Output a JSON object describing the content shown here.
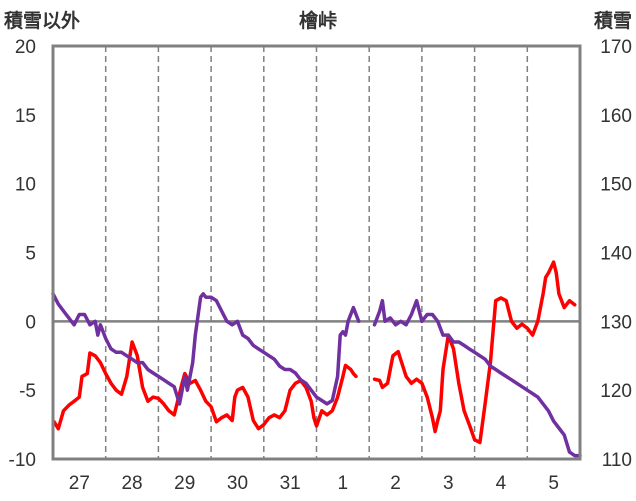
{
  "chart_data": {
    "type": "line",
    "title": "檜峠",
    "left_axis_label": "積雪以外",
    "right_axis_label": "積雪",
    "x_tick_labels": [
      "27",
      "28",
      "29",
      "30",
      "31",
      "1",
      "2",
      "3",
      "4",
      "5"
    ],
    "y_left": {
      "min": -10,
      "max": 20,
      "ticks": [
        20,
        15,
        10,
        5,
        0,
        -5,
        -10
      ]
    },
    "y_right": {
      "min": 110,
      "max": 170,
      "ticks": [
        170,
        160,
        150,
        140,
        130,
        120,
        110
      ]
    },
    "x_range": [
      26.5,
      36.5
    ],
    "zero_line": true,
    "grid": "dashed vertical at day boundaries",
    "series": [
      {
        "color": "#ff0000",
        "axis": "left",
        "segments": [
          [
            [
              26.52,
              -7.3
            ],
            [
              26.6,
              -7.8
            ],
            [
              26.7,
              -6.5
            ],
            [
              26.8,
              -6.1
            ],
            [
              26.9,
              -5.8
            ],
            [
              27.0,
              -5.5
            ],
            [
              27.05,
              -4.0
            ],
            [
              27.15,
              -3.8
            ],
            [
              27.2,
              -2.3
            ],
            [
              27.3,
              -2.5
            ],
            [
              27.4,
              -3.0
            ],
            [
              27.5,
              -3.8
            ],
            [
              27.6,
              -4.5
            ],
            [
              27.7,
              -5.0
            ],
            [
              27.8,
              -5.3
            ],
            [
              27.9,
              -4.0
            ],
            [
              28.0,
              -1.5
            ],
            [
              28.1,
              -2.5
            ],
            [
              28.2,
              -4.8
            ],
            [
              28.3,
              -5.8
            ],
            [
              28.4,
              -5.5
            ],
            [
              28.5,
              -5.6
            ],
            [
              28.6,
              -6.0
            ],
            [
              28.7,
              -6.5
            ],
            [
              28.8,
              -6.8
            ],
            [
              28.95,
              -4.5
            ],
            [
              29.0,
              -3.8
            ],
            [
              29.1,
              -4.5
            ],
            [
              29.2,
              -4.3
            ],
            [
              29.3,
              -5.0
            ],
            [
              29.4,
              -5.8
            ],
            [
              29.5,
              -6.2
            ],
            [
              29.6,
              -7.3
            ],
            [
              29.7,
              -7.0
            ],
            [
              29.8,
              -6.8
            ],
            [
              29.9,
              -7.2
            ],
            [
              29.95,
              -5.5
            ],
            [
              30.0,
              -5.0
            ],
            [
              30.1,
              -4.8
            ],
            [
              30.2,
              -5.5
            ],
            [
              30.3,
              -7.2
            ],
            [
              30.4,
              -7.8
            ],
            [
              30.5,
              -7.5
            ],
            [
              30.6,
              -7.0
            ],
            [
              30.7,
              -6.8
            ],
            [
              30.8,
              -7.0
            ],
            [
              30.9,
              -6.5
            ],
            [
              31.0,
              -5.0
            ],
            [
              31.1,
              -4.5
            ],
            [
              31.2,
              -4.3
            ],
            [
              31.3,
              -4.8
            ],
            [
              31.4,
              -5.8
            ],
            [
              31.45,
              -7.0
            ],
            [
              31.5,
              -7.6
            ],
            [
              31.6,
              -6.5
            ],
            [
              31.7,
              -6.8
            ],
            [
              31.8,
              -6.5
            ],
            [
              31.9,
              -5.5
            ],
            [
              32.0,
              -4.0
            ],
            [
              32.05,
              -3.2
            ],
            [
              32.15,
              -3.5
            ],
            [
              32.2,
              -3.8
            ],
            [
              32.25,
              -4.0
            ]
          ],
          [
            [
              32.6,
              -4.2
            ],
            [
              32.7,
              -4.3
            ],
            [
              32.75,
              -4.8
            ],
            [
              32.85,
              -4.5
            ],
            [
              32.95,
              -2.5
            ],
            [
              33.05,
              -2.2
            ],
            [
              33.1,
              -2.8
            ],
            [
              33.2,
              -4.0
            ],
            [
              33.3,
              -4.5
            ],
            [
              33.4,
              -4.2
            ],
            [
              33.5,
              -4.5
            ],
            [
              33.6,
              -5.5
            ],
            [
              33.7,
              -7.0
            ],
            [
              33.75,
              -8.0
            ],
            [
              33.8,
              -7.2
            ],
            [
              33.85,
              -6.5
            ],
            [
              33.9,
              -3.5
            ],
            [
              34.0,
              -1.0
            ],
            [
              34.1,
              -2.0
            ],
            [
              34.2,
              -4.5
            ],
            [
              34.3,
              -6.5
            ],
            [
              34.4,
              -7.5
            ],
            [
              34.5,
              -8.6
            ],
            [
              34.6,
              -8.8
            ],
            [
              34.7,
              -6.0
            ],
            [
              34.8,
              -3.0
            ],
            [
              34.9,
              1.5
            ],
            [
              35.0,
              1.7
            ],
            [
              35.1,
              1.5
            ],
            [
              35.2,
              0.0
            ],
            [
              35.3,
              -0.5
            ],
            [
              35.4,
              -0.2
            ],
            [
              35.5,
              -0.5
            ],
            [
              35.6,
              -1.0
            ],
            [
              35.7,
              0.0
            ],
            [
              35.8,
              2.0
            ],
            [
              35.85,
              3.2
            ],
            [
              35.9,
              3.5
            ],
            [
              36.0,
              4.3
            ],
            [
              36.05,
              3.5
            ],
            [
              36.1,
              2.0
            ],
            [
              36.2,
              1.0
            ],
            [
              36.3,
              1.5
            ],
            [
              36.4,
              1.2
            ]
          ]
        ]
      },
      {
        "color": "#7030a0",
        "axis": "right",
        "segments": [
          [
            [
              26.5,
              134.0
            ],
            [
              26.6,
              132.5
            ],
            [
              26.7,
              131.5
            ],
            [
              26.8,
              130.5
            ],
            [
              26.9,
              129.5
            ],
            [
              27.0,
              131.0
            ],
            [
              27.1,
              131.0
            ],
            [
              27.2,
              129.5
            ],
            [
              27.3,
              130.0
            ],
            [
              27.35,
              128.0
            ],
            [
              27.4,
              129.5
            ],
            [
              27.5,
              127.5
            ],
            [
              27.6,
              126.0
            ],
            [
              27.7,
              125.5
            ],
            [
              27.8,
              125.5
            ],
            [
              27.9,
              125.0
            ],
            [
              28.0,
              124.5
            ],
            [
              28.1,
              124.0
            ],
            [
              28.2,
              124.0
            ],
            [
              28.3,
              123.0
            ],
            [
              28.4,
              122.5
            ],
            [
              28.5,
              122.0
            ],
            [
              28.6,
              121.5
            ],
            [
              28.7,
              121.0
            ],
            [
              28.8,
              120.5
            ],
            [
              28.9,
              118.0
            ],
            [
              29.0,
              122.0
            ],
            [
              29.05,
              120.0
            ],
            [
              29.15,
              124.0
            ],
            [
              29.2,
              128.0
            ],
            [
              29.3,
              133.5
            ],
            [
              29.35,
              134.0
            ],
            [
              29.4,
              133.5
            ],
            [
              29.5,
              133.5
            ],
            [
              29.6,
              133.0
            ],
            [
              29.7,
              131.5
            ],
            [
              29.8,
              130.0
            ],
            [
              29.9,
              129.5
            ],
            [
              30.0,
              130.0
            ],
            [
              30.1,
              128.0
            ],
            [
              30.2,
              127.5
            ],
            [
              30.3,
              126.5
            ],
            [
              30.4,
              126.0
            ],
            [
              30.5,
              125.5
            ],
            [
              30.6,
              125.0
            ],
            [
              30.7,
              124.5
            ],
            [
              30.8,
              123.5
            ],
            [
              30.9,
              123.0
            ],
            [
              31.0,
              123.0
            ],
            [
              31.1,
              122.5
            ],
            [
              31.2,
              121.5
            ],
            [
              31.3,
              121.0
            ],
            [
              31.4,
              120.0
            ],
            [
              31.5,
              119.0
            ],
            [
              31.6,
              118.5
            ],
            [
              31.7,
              118.0
            ],
            [
              31.8,
              118.5
            ],
            [
              31.9,
              122.0
            ],
            [
              31.95,
              128.0
            ],
            [
              32.0,
              128.5
            ],
            [
              32.05,
              128.0
            ],
            [
              32.1,
              130.0
            ],
            [
              32.2,
              132.0
            ],
            [
              32.3,
              130.0
            ]
          ],
          [
            [
              32.6,
              129.5
            ],
            [
              32.7,
              131.5
            ],
            [
              32.75,
              133.0
            ],
            [
              32.8,
              130.0
            ],
            [
              32.9,
              130.5
            ],
            [
              33.0,
              129.5
            ],
            [
              33.1,
              130.0
            ],
            [
              33.2,
              129.5
            ],
            [
              33.3,
              131.0
            ],
            [
              33.4,
              133.0
            ],
            [
              33.5,
              130.0
            ],
            [
              33.6,
              131.0
            ],
            [
              33.7,
              131.0
            ],
            [
              33.8,
              130.0
            ],
            [
              33.9,
              128.0
            ],
            [
              34.0,
              128.0
            ],
            [
              34.1,
              127.0
            ],
            [
              34.2,
              127.0
            ],
            [
              34.3,
              126.5
            ],
            [
              34.4,
              126.0
            ],
            [
              34.5,
              125.5
            ],
            [
              34.6,
              125.0
            ],
            [
              34.7,
              124.5
            ],
            [
              34.8,
              123.5
            ],
            [
              34.9,
              123.0
            ],
            [
              35.0,
              122.5
            ],
            [
              35.1,
              122.0
            ],
            [
              35.2,
              121.5
            ],
            [
              35.3,
              121.0
            ],
            [
              35.4,
              120.5
            ],
            [
              35.5,
              120.0
            ],
            [
              35.6,
              119.5
            ],
            [
              35.7,
              119.0
            ],
            [
              35.8,
              118.0
            ],
            [
              35.9,
              117.0
            ],
            [
              36.0,
              115.5
            ],
            [
              36.1,
              114.5
            ],
            [
              36.2,
              113.5
            ],
            [
              36.3,
              111.0
            ],
            [
              36.4,
              110.5
            ],
            [
              36.5,
              110.5
            ]
          ]
        ]
      }
    ]
  }
}
